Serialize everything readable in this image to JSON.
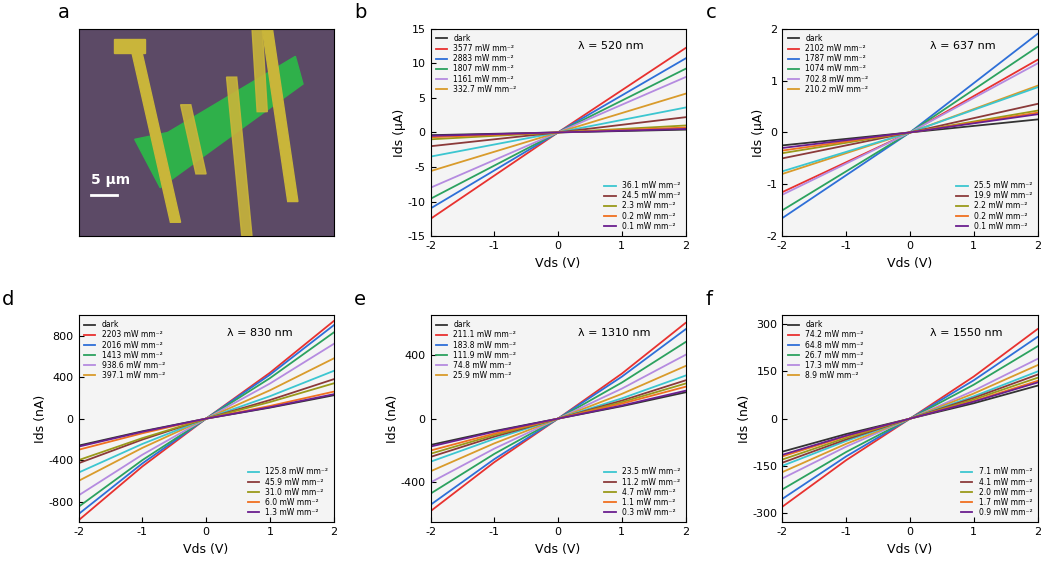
{
  "chart_data": [
    {
      "type": "image",
      "title": "a",
      "annotations": [
        "5 µm"
      ]
    },
    {
      "type": "line",
      "title": "b",
      "annotations": [
        "λ = 520 nm"
      ],
      "x_label": "Vds (V)",
      "y_label": "Ids (μA)",
      "xlim": [
        -2,
        2
      ],
      "xticks": [
        -2,
        -1,
        0,
        1,
        2
      ],
      "ylim": [
        -15,
        15
      ],
      "yticks": [
        -15,
        -10,
        -5,
        0,
        5,
        10,
        15
      ],
      "legend": "upper left",
      "x": [
        -2,
        0,
        2
      ],
      "series": [
        {
          "name": "dark",
          "color": "#333333",
          "values": [
            -0.4,
            0,
            0.4
          ]
        },
        {
          "name": "3577 mW mm⁻²",
          "color": "#e8312f",
          "values": [
            -12.5,
            0,
            12.2
          ]
        },
        {
          "name": "2883 mW mm⁻²",
          "color": "#2e6fd8",
          "values": [
            -11.0,
            0,
            10.7
          ]
        },
        {
          "name": "1807 mW mm⁻²",
          "color": "#2ca25f",
          "values": [
            -9.6,
            0,
            9.2
          ]
        },
        {
          "name": "1161 mW mm⁻²",
          "color": "#b58be0",
          "values": [
            -8.0,
            0,
            8.0
          ]
        },
        {
          "name": "332.7 mW mm⁻²",
          "color": "#d99b2b",
          "values": [
            -5.6,
            0,
            5.6
          ]
        },
        {
          "name": "36.1 mW mm⁻²",
          "color": "#3cc6d0",
          "values": [
            -3.5,
            0,
            3.6
          ]
        },
        {
          "name": "24.5 mW mm⁻²",
          "color": "#8b3a3a",
          "values": [
            -2.0,
            0,
            2.2
          ]
        },
        {
          "name": "2.3 mW mm⁻²",
          "color": "#9a9a1a",
          "values": [
            -1.0,
            0,
            1.0
          ]
        },
        {
          "name": "0.2 mW mm⁻²",
          "color": "#f07020",
          "values": [
            -0.7,
            0,
            0.7
          ]
        },
        {
          "name": "0.1 mW mm⁻²",
          "color": "#6a1f8f",
          "values": [
            -0.5,
            0,
            0.5
          ]
        }
      ]
    },
    {
      "type": "line",
      "title": "c",
      "annotations": [
        "λ = 637 nm"
      ],
      "x_label": "Vds (V)",
      "y_label": "Ids (μA)",
      "xlim": [
        -2,
        2
      ],
      "xticks": [
        -2,
        -1,
        0,
        1,
        2
      ],
      "ylim": [
        -2,
        2
      ],
      "yticks": [
        -2,
        -1,
        0,
        1,
        2
      ],
      "legend": "upper left",
      "x": [
        -2,
        0,
        2
      ],
      "series": [
        {
          "name": "dark",
          "color": "#333333",
          "values": [
            -0.25,
            0,
            0.25
          ]
        },
        {
          "name": "2102 mW mm⁻²",
          "color": "#e8312f",
          "values": [
            -1.15,
            0,
            1.4
          ]
        },
        {
          "name": "1787 mW mm⁻²",
          "color": "#2e6fd8",
          "values": [
            -1.65,
            0,
            1.9
          ]
        },
        {
          "name": "1074 mW mm⁻²",
          "color": "#2ca25f",
          "values": [
            -1.5,
            0,
            1.65
          ]
        },
        {
          "name": "702.8 mW mm⁻²",
          "color": "#b58be0",
          "values": [
            -1.2,
            0,
            1.33
          ]
        },
        {
          "name": "210.2 mW mm⁻²",
          "color": "#d99b2b",
          "values": [
            -0.8,
            0,
            0.9
          ]
        },
        {
          "name": "25.5 mW mm⁻²",
          "color": "#3cc6d0",
          "values": [
            -0.75,
            0,
            0.87
          ]
        },
        {
          "name": "19.9 mW mm⁻²",
          "color": "#8b3a3a",
          "values": [
            -0.5,
            0,
            0.55
          ]
        },
        {
          "name": "2.2 mW mm⁻²",
          "color": "#9a9a1a",
          "values": [
            -0.4,
            0,
            0.42
          ]
        },
        {
          "name": "0.2 mW mm⁻²",
          "color": "#f07020",
          "values": [
            -0.35,
            0,
            0.38
          ]
        },
        {
          "name": "0.1 mW mm⁻²",
          "color": "#6a1f8f",
          "values": [
            -0.3,
            0,
            0.35
          ]
        }
      ]
    },
    {
      "type": "line",
      "title": "d",
      "annotations": [
        "λ = 830 nm"
      ],
      "x_label": "Vds (V)",
      "y_label": "Ids (nA)",
      "xlim": [
        -2,
        2
      ],
      "xticks": [
        -2,
        -1,
        0,
        1,
        2
      ],
      "ylim": [
        -1000,
        1000
      ],
      "yticks": [
        -800,
        -400,
        0,
        400,
        800
      ],
      "legend": "upper left",
      "x": [
        -2,
        -1,
        0,
        1,
        2
      ],
      "series": [
        {
          "name": "dark",
          "color": "#333333",
          "values": [
            -260,
            -122,
            0,
            106,
            225
          ]
        },
        {
          "name": "2203 mW mm⁻²",
          "color": "#e8312f",
          "values": [
            -980,
            -461,
            0,
            442,
            940
          ]
        },
        {
          "name": "2016 mW mm⁻²",
          "color": "#2e6fd8",
          "values": [
            -920,
            -432,
            0,
            423,
            900
          ]
        },
        {
          "name": "1413 mW mm⁻²",
          "color": "#2ca25f",
          "values": [
            -850,
            -400,
            0,
            390,
            830
          ]
        },
        {
          "name": "938.6 mW mm⁻²",
          "color": "#b58be0",
          "values": [
            -740,
            -348,
            0,
            338,
            720
          ]
        },
        {
          "name": "397.1 mW mm⁻²",
          "color": "#d99b2b",
          "values": [
            -600,
            -282,
            0,
            273,
            580
          ]
        },
        {
          "name": "125.8 mW mm⁻²",
          "color": "#3cc6d0",
          "values": [
            -520,
            -244,
            0,
            216,
            460
          ]
        },
        {
          "name": "45.9 mW mm⁻²",
          "color": "#8b3a3a",
          "values": [
            -430,
            -202,
            0,
            179,
            380
          ]
        },
        {
          "name": "31.0 mW mm⁻²",
          "color": "#9a9a1a",
          "values": [
            -400,
            -188,
            0,
            160,
            340
          ]
        },
        {
          "name": "6.0 mW mm⁻²",
          "color": "#f07020",
          "values": [
            -300,
            -141,
            0,
            122,
            260
          ]
        },
        {
          "name": "1.3 mW mm⁻²",
          "color": "#6a1f8f",
          "values": [
            -270,
            -127,
            0,
            110,
            235
          ]
        }
      ]
    },
    {
      "type": "line",
      "title": "e",
      "annotations": [
        "λ = 1310 nm"
      ],
      "x_label": "Vds (V)",
      "y_label": "Ids (nA)",
      "xlim": [
        -2,
        2
      ],
      "xticks": [
        -2,
        -1,
        0,
        1,
        2
      ],
      "ylim": [
        -650,
        650
      ],
      "yticks": [
        -400,
        0,
        400
      ],
      "legend": "upper left",
      "x": [
        -2,
        -1,
        0,
        1,
        2
      ],
      "series": [
        {
          "name": "dark",
          "color": "#333333",
          "values": [
            -165,
            -78,
            0,
            78,
            165
          ]
        },
        {
          "name": "211.1 mW mm⁻²",
          "color": "#e8312f",
          "values": [
            -580,
            -273,
            0,
            282,
            600
          ]
        },
        {
          "name": "183.8 mW mm⁻²",
          "color": "#2e6fd8",
          "values": [
            -540,
            -254,
            0,
            263,
            560
          ]
        },
        {
          "name": "111.9 mW mm⁻²",
          "color": "#2ca25f",
          "values": [
            -470,
            -221,
            0,
            226,
            480
          ]
        },
        {
          "name": "74.8 mW mm⁻²",
          "color": "#b58be0",
          "values": [
            -400,
            -188,
            0,
            188,
            400
          ]
        },
        {
          "name": "25.9 mW mm⁻²",
          "color": "#d99b2b",
          "values": [
            -330,
            -155,
            0,
            155,
            330
          ]
        },
        {
          "name": "23.5 mW mm⁻²",
          "color": "#3cc6d0",
          "values": [
            -270,
            -127,
            0,
            127,
            270
          ]
        },
        {
          "name": "11.2 mW mm⁻²",
          "color": "#8b3a3a",
          "values": [
            -240,
            -113,
            0,
            113,
            240
          ]
        },
        {
          "name": "4.7 mW mm⁻²",
          "color": "#9a9a1a",
          "values": [
            -220,
            -103,
            0,
            103,
            220
          ]
        },
        {
          "name": "1.1 mW mm⁻²",
          "color": "#f07020",
          "values": [
            -200,
            -94,
            0,
            94,
            200
          ]
        },
        {
          "name": "0.3 mW mm⁻²",
          "color": "#6a1f8f",
          "values": [
            -175,
            -82,
            0,
            82,
            175
          ]
        }
      ]
    },
    {
      "type": "line",
      "title": "f",
      "annotations": [
        "λ = 1550 nm"
      ],
      "x_label": "Vds (V)",
      "y_label": "Ids (nA)",
      "xlim": [
        -2,
        2
      ],
      "xticks": [
        -2,
        -1,
        0,
        1,
        2
      ],
      "ylim": [
        -330,
        330
      ],
      "yticks": [
        -300,
        -150,
        0,
        150,
        300
      ],
      "legend": "upper left",
      "x": [
        -2,
        -1,
        0,
        1,
        2
      ],
      "series": [
        {
          "name": "dark",
          "color": "#333333",
          "values": [
            -105,
            -49,
            0,
            49,
            105
          ]
        },
        {
          "name": "74.2 mW mm⁻²",
          "color": "#e8312f",
          "values": [
            -280,
            -132,
            0,
            134,
            285
          ]
        },
        {
          "name": "64.8 mW mm⁻²",
          "color": "#2e6fd8",
          "values": [
            -255,
            -120,
            0,
            122,
            260
          ]
        },
        {
          "name": "26.7 mW mm⁻²",
          "color": "#2ca25f",
          "values": [
            -225,
            -106,
            0,
            108,
            230
          ]
        },
        {
          "name": "17.3 mW mm⁻²",
          "color": "#b58be0",
          "values": [
            -190,
            -89,
            0,
            89,
            190
          ]
        },
        {
          "name": "8.9 mW mm⁻²",
          "color": "#d99b2b",
          "values": [
            -170,
            -80,
            0,
            80,
            170
          ]
        },
        {
          "name": "7.1 mW mm⁻²",
          "color": "#3cc6d0",
          "values": [
            -150,
            -71,
            0,
            71,
            150
          ]
        },
        {
          "name": "4.1 mW mm⁻²",
          "color": "#8b3a3a",
          "values": [
            -140,
            -66,
            0,
            66,
            140
          ]
        },
        {
          "name": "2.0 mW mm⁻²",
          "color": "#9a9a1a",
          "values": [
            -130,
            -61,
            0,
            61,
            130
          ]
        },
        {
          "name": "1.7 mW mm⁻²",
          "color": "#f07020",
          "values": [
            -120,
            -56,
            0,
            56,
            120
          ]
        },
        {
          "name": "0.9 mW mm⁻²",
          "color": "#6a1f8f",
          "values": [
            -115,
            -54,
            0,
            54,
            115
          ]
        }
      ]
    }
  ]
}
